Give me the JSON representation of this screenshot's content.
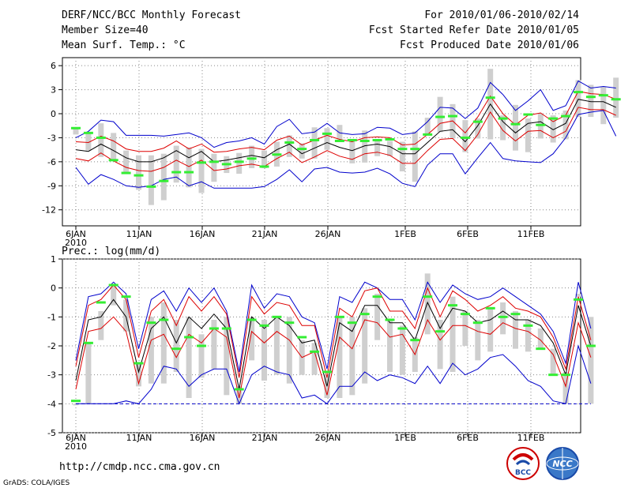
{
  "header": {
    "left": [
      "DERF/NCC/BCC Monthly Forecast",
      "Member Size=40",
      "Mean Surf. Temp.: °C"
    ],
    "right": [
      "For 2010/01/06-2010/02/14",
      "Fcst Started Refer Date 2010/01/05",
      "Fcst Produced Date 2010/01/06"
    ]
  },
  "footer": {
    "url": "http://cmdp.ncc.cma.gov.cn",
    "credit": "GrADS: COLA/IGES",
    "logo_bcc_text": "BCC",
    "logo_ncc_text": "NCC"
  },
  "colors": {
    "box": "#cfcfcf",
    "mean": "#000000",
    "spread": "#dd0000",
    "envelope": "#0000cc",
    "green": "#33ee33",
    "grid": "#888888"
  },
  "chart_data": [
    {
      "type": "box",
      "title": "Mean Surf. Temp.: °C",
      "x_ticks": [
        "6JAN\n2010",
        "11JAN",
        "16JAN",
        "21JAN",
        "26JAN",
        "1FEB",
        "6FEB",
        "11FEB"
      ],
      "ylim": [
        -14,
        7
      ],
      "y_ticks": [
        6,
        3,
        0,
        -3,
        -6,
        -9,
        -12
      ],
      "grid": true,
      "mean": [
        -4.5,
        -4.7,
        -3.8,
        -4.6,
        -5.5,
        -6.0,
        -6.0,
        -5.5,
        -4.6,
        -5.5,
        -4.7,
        -6.0,
        -5.8,
        -5.5,
        -5.2,
        -5.5,
        -4.5,
        -3.8,
        -5.0,
        -4.3,
        -3.6,
        -4.2,
        -4.6,
        -4.0,
        -3.8,
        -4.1,
        -5.0,
        -5.0,
        -3.6,
        -2.2,
        -2.0,
        -3.5,
        -1.5,
        1.2,
        -1.0,
        -2.4,
        -1.2,
        -1.0,
        -2.0,
        -1.2,
        1.8,
        1.5,
        1.5,
        0.8
      ],
      "upper": [
        -3.5,
        -3.6,
        -2.8,
        -3.4,
        -4.4,
        -4.7,
        -4.7,
        -4.3,
        -3.4,
        -4.4,
        -3.8,
        -4.8,
        -4.7,
        -4.4,
        -4.2,
        -4.5,
        -3.3,
        -2.8,
        -3.9,
        -3.3,
        -2.7,
        -3.2,
        -3.5,
        -3.0,
        -2.9,
        -3.0,
        -3.9,
        -3.8,
        -2.6,
        -1.2,
        -0.9,
        -2.4,
        -0.4,
        2.2,
        0.0,
        -1.4,
        -0.2,
        0.1,
        -1.0,
        -0.2,
        2.8,
        2.5,
        2.4,
        1.8
      ],
      "lower": [
        -5.6,
        -5.9,
        -4.9,
        -5.9,
        -6.7,
        -7.1,
        -7.2,
        -6.7,
        -5.8,
        -6.6,
        -5.8,
        -7.1,
        -6.9,
        -6.5,
        -6.3,
        -6.6,
        -5.6,
        -4.8,
        -6.1,
        -5.4,
        -4.6,
        -5.3,
        -5.7,
        -5.0,
        -4.8,
        -5.2,
        -6.2,
        -6.2,
        -4.6,
        -3.2,
        -3.1,
        -4.6,
        -2.6,
        0.2,
        -2.1,
        -3.4,
        -2.2,
        -2.1,
        -3.0,
        -2.2,
        0.8,
        0.5,
        0.5,
        -0.2
      ],
      "max": [
        -3.0,
        -2.2,
        -0.8,
        -1.0,
        -2.7,
        -2.7,
        -2.7,
        -2.8,
        -2.6,
        -2.4,
        -3.0,
        -4.2,
        -3.6,
        -3.4,
        -3.0,
        -3.8,
        -1.6,
        -0.7,
        -2.5,
        -2.3,
        -1.2,
        -2.4,
        -2.6,
        -2.5,
        -1.7,
        -1.8,
        -2.6,
        -2.4,
        -1.0,
        0.8,
        0.7,
        -0.6,
        0.7,
        3.9,
        2.4,
        0.4,
        1.6,
        3.0,
        0.4,
        1.0,
        4.1,
        3.2,
        3.4,
        3.2
      ],
      "min": [
        -6.7,
        -8.8,
        -7.6,
        -8.2,
        -9.0,
        -9.2,
        -9.0,
        -8.2,
        -7.9,
        -9.0,
        -8.5,
        -9.3,
        -9.3,
        -9.3,
        -9.3,
        -9.1,
        -8.2,
        -7.0,
        -8.5,
        -6.9,
        -6.7,
        -7.3,
        -7.4,
        -7.3,
        -6.8,
        -7.5,
        -8.7,
        -9.1,
        -6.4,
        -5.0,
        -5.0,
        -7.5,
        -5.5,
        -3.6,
        -5.6,
        -5.9,
        -6.0,
        -6.1,
        -5.0,
        -3.0,
        -0.1,
        0.2,
        0.4,
        -2.8
      ],
      "box_top": [
        -1.8,
        -2.4,
        -1.2,
        -2.4,
        -4.6,
        -5.2,
        -5.2,
        -5.0,
        -4.0,
        -4.2,
        -4.4,
        -5.0,
        -5.3,
        -4.9,
        -4.0,
        -4.6,
        -3.5,
        -2.7,
        -3.7,
        -1.7,
        -1.8,
        -1.4,
        -3.2,
        -2.1,
        -3.2,
        -3.4,
        -3.5,
        -2.2,
        -0.5,
        2.1,
        1.2,
        -0.8,
        -0.6,
        5.6,
        -0.2,
        1.1,
        -0.6,
        0.0,
        -0.2,
        0.4,
        4.2,
        3.6,
        3.4,
        4.5
      ],
      "box_bottom": [
        -2.6,
        -4.6,
        -5.4,
        -5.7,
        -7.4,
        -9.5,
        -11.4,
        -10.8,
        -8.6,
        -9.2,
        -9.9,
        -8.5,
        -7.4,
        -7.5,
        -6.8,
        -6.8,
        -6.6,
        -5.4,
        -5.6,
        -5.6,
        -4.5,
        -3.2,
        -6.2,
        -6.1,
        -5.3,
        -5.3,
        -7.2,
        -8.5,
        -2.7,
        -2.3,
        -3.1,
        -4.8,
        -3.1,
        -3.2,
        -3.3,
        -4.6,
        -4.8,
        -3.1,
        -3.6,
        -3.2,
        -0.4,
        -0.4,
        -1.3,
        -0.5
      ],
      "green": [
        -1.8,
        -2.4,
        -3.0,
        -5.8,
        -7.4,
        -7.7,
        -9.1,
        -8.4,
        -7.3,
        -7.3,
        -6.1,
        -6.0,
        -6.3,
        -6.0,
        -5.6,
        -6.6,
        -5.1,
        -3.6,
        -4.4,
        -3.3,
        -2.5,
        -3.4,
        -3.3,
        -3.4,
        -3.3,
        -3.2,
        -4.4,
        -4.4,
        -2.6,
        -0.4,
        -0.3,
        -3.0,
        -1.0,
        2.0,
        -0.6,
        -1.3,
        -0.1,
        -1.4,
        -0.6,
        -0.3,
        2.7,
        2.1,
        2.3,
        1.8
      ]
    },
    {
      "type": "box",
      "title": "Prec.: log(mm/d)",
      "x_ticks": [
        "6JAN\n2010",
        "11JAN",
        "16JAN",
        "21JAN",
        "26JAN",
        "1FEB",
        "6FEB",
        "11FEB"
      ],
      "ylim": [
        -5,
        1
      ],
      "y_ticks": [
        1,
        0,
        -1,
        -2,
        -3,
        -4,
        -5
      ],
      "grid": true,
      "floor": -4,
      "mean": [
        -3.2,
        -1.1,
        -1.0,
        -0.4,
        -1.0,
        -2.9,
        -1.4,
        -1.0,
        -1.9,
        -1.0,
        -1.4,
        -0.9,
        -1.4,
        -3.5,
        -1.0,
        -1.4,
        -1.0,
        -1.3,
        -1.9,
        -1.8,
        -3.4,
        -1.2,
        -1.5,
        -0.6,
        -0.6,
        -1.2,
        -1.2,
        -1.8,
        -0.5,
        -1.4,
        -0.7,
        -0.8,
        -1.2,
        -1.1,
        -0.8,
        -1.1,
        -1.1,
        -1.3,
        -1.9,
        -3.0,
        -0.6,
        -2.0
      ],
      "upper": [
        -2.7,
        -0.6,
        -0.4,
        0.1,
        -0.4,
        -2.4,
        -0.8,
        -0.4,
        -1.3,
        -0.3,
        -0.8,
        -0.3,
        -0.9,
        -3.1,
        -0.3,
        -0.9,
        -0.5,
        -0.6,
        -1.3,
        -1.3,
        -3.1,
        -0.7,
        -1.0,
        -0.1,
        0.0,
        -0.8,
        -0.8,
        -1.4,
        0.0,
        -1.0,
        -0.1,
        -0.4,
        -0.8,
        -0.6,
        -0.3,
        -0.7,
        -0.8,
        -1.0,
        -1.7,
        -2.8,
        -0.3,
        -1.8
      ],
      "lower": [
        -3.5,
        -1.5,
        -1.4,
        -1.0,
        -1.5,
        -3.3,
        -1.8,
        -1.6,
        -2.4,
        -1.6,
        -1.9,
        -1.4,
        -1.7,
        -3.8,
        -1.5,
        -1.9,
        -1.5,
        -1.8,
        -2.4,
        -2.2,
        -3.7,
        -1.7,
        -2.1,
        -1.1,
        -1.2,
        -1.7,
        -1.6,
        -2.3,
        -1.1,
        -1.8,
        -1.3,
        -1.3,
        -1.5,
        -1.6,
        -1.2,
        -1.4,
        -1.5,
        -1.8,
        -2.3,
        -3.4,
        -1.2,
        -2.4
      ],
      "max": [
        -2.5,
        -0.3,
        -0.2,
        0.2,
        -0.2,
        -2.1,
        -0.4,
        -0.1,
        -0.8,
        0.0,
        -0.5,
        0.0,
        -0.8,
        -2.9,
        0.1,
        -0.7,
        -0.2,
        -0.3,
        -1.0,
        -1.2,
        -2.8,
        -0.3,
        -0.5,
        0.2,
        0.0,
        -0.4,
        -0.4,
        -1.1,
        0.2,
        -0.5,
        0.1,
        -0.2,
        -0.4,
        -0.3,
        0.0,
        -0.3,
        -0.6,
        -0.9,
        -1.5,
        -2.6,
        0.2,
        -1.4
      ],
      "min": [
        -4.0,
        -4.0,
        -4.0,
        -4.0,
        -3.9,
        -4.0,
        -3.5,
        -2.7,
        -2.8,
        -3.4,
        -3.0,
        -2.8,
        -2.8,
        -4.0,
        -3.0,
        -2.7,
        -2.9,
        -3.0,
        -3.8,
        -3.7,
        -4.0,
        -3.4,
        -3.4,
        -2.9,
        -3.2,
        -3.0,
        -3.1,
        -3.3,
        -2.7,
        -3.3,
        -2.6,
        -3.0,
        -2.8,
        -2.4,
        -2.3,
        -2.7,
        -3.2,
        -3.4,
        -3.9,
        -4.0,
        -2.0,
        -3.3
      ],
      "box_top": [
        -4.0,
        -1.9,
        -0.8,
        0.1,
        -0.4,
        -2.6,
        -1.0,
        -0.5,
        -1.1,
        -1.0,
        -1.6,
        -1.1,
        -1.0,
        -3.4,
        -1.0,
        -1.1,
        -1.0,
        -1.0,
        -1.8,
        -1.9,
        -3.0,
        -1.0,
        -1.0,
        -0.7,
        -0.2,
        -1.1,
        -1.3,
        -1.7,
        0.5,
        -1.1,
        -0.3,
        -0.8,
        -1.1,
        -0.7,
        -0.5,
        -0.8,
        -1.1,
        -1.4,
        -2.1,
        -2.9,
        -0.2,
        -1.0
      ],
      "box_bottom": [
        -4.0,
        -4.0,
        -1.8,
        -0.6,
        -1.5,
        -3.4,
        -3.3,
        -3.3,
        -2.9,
        -3.8,
        -3.1,
        -2.8,
        -3.7,
        -4.0,
        -2.5,
        -3.2,
        -3.0,
        -3.3,
        -3.0,
        -3.0,
        -3.8,
        -3.8,
        -3.7,
        -3.3,
        -1.8,
        -2.9,
        -3.0,
        -2.9,
        -1.6,
        -2.8,
        -2.9,
        -2.0,
        -2.5,
        -2.2,
        -1.6,
        -2.1,
        -2.2,
        -2.1,
        -3.0,
        -4.0,
        -0.3,
        -4.0
      ],
      "green": [
        -3.9,
        -1.9,
        -0.5,
        0.1,
        -0.3,
        -2.6,
        -1.2,
        -1.1,
        -2.1,
        -1.7,
        -2.0,
        -1.4,
        -1.4,
        -3.5,
        -1.1,
        -1.3,
        -1.0,
        -1.2,
        -1.7,
        -2.2,
        -2.9,
        -1.0,
        -1.2,
        -0.9,
        -0.3,
        -1.1,
        -1.4,
        -1.8,
        -0.3,
        -1.5,
        -0.6,
        -0.9,
        -1.2,
        -0.7,
        -1.0,
        -0.9,
        -1.3,
        -2.1,
        -3.0,
        -3.0,
        -0.4,
        -2.0
      ]
    }
  ]
}
